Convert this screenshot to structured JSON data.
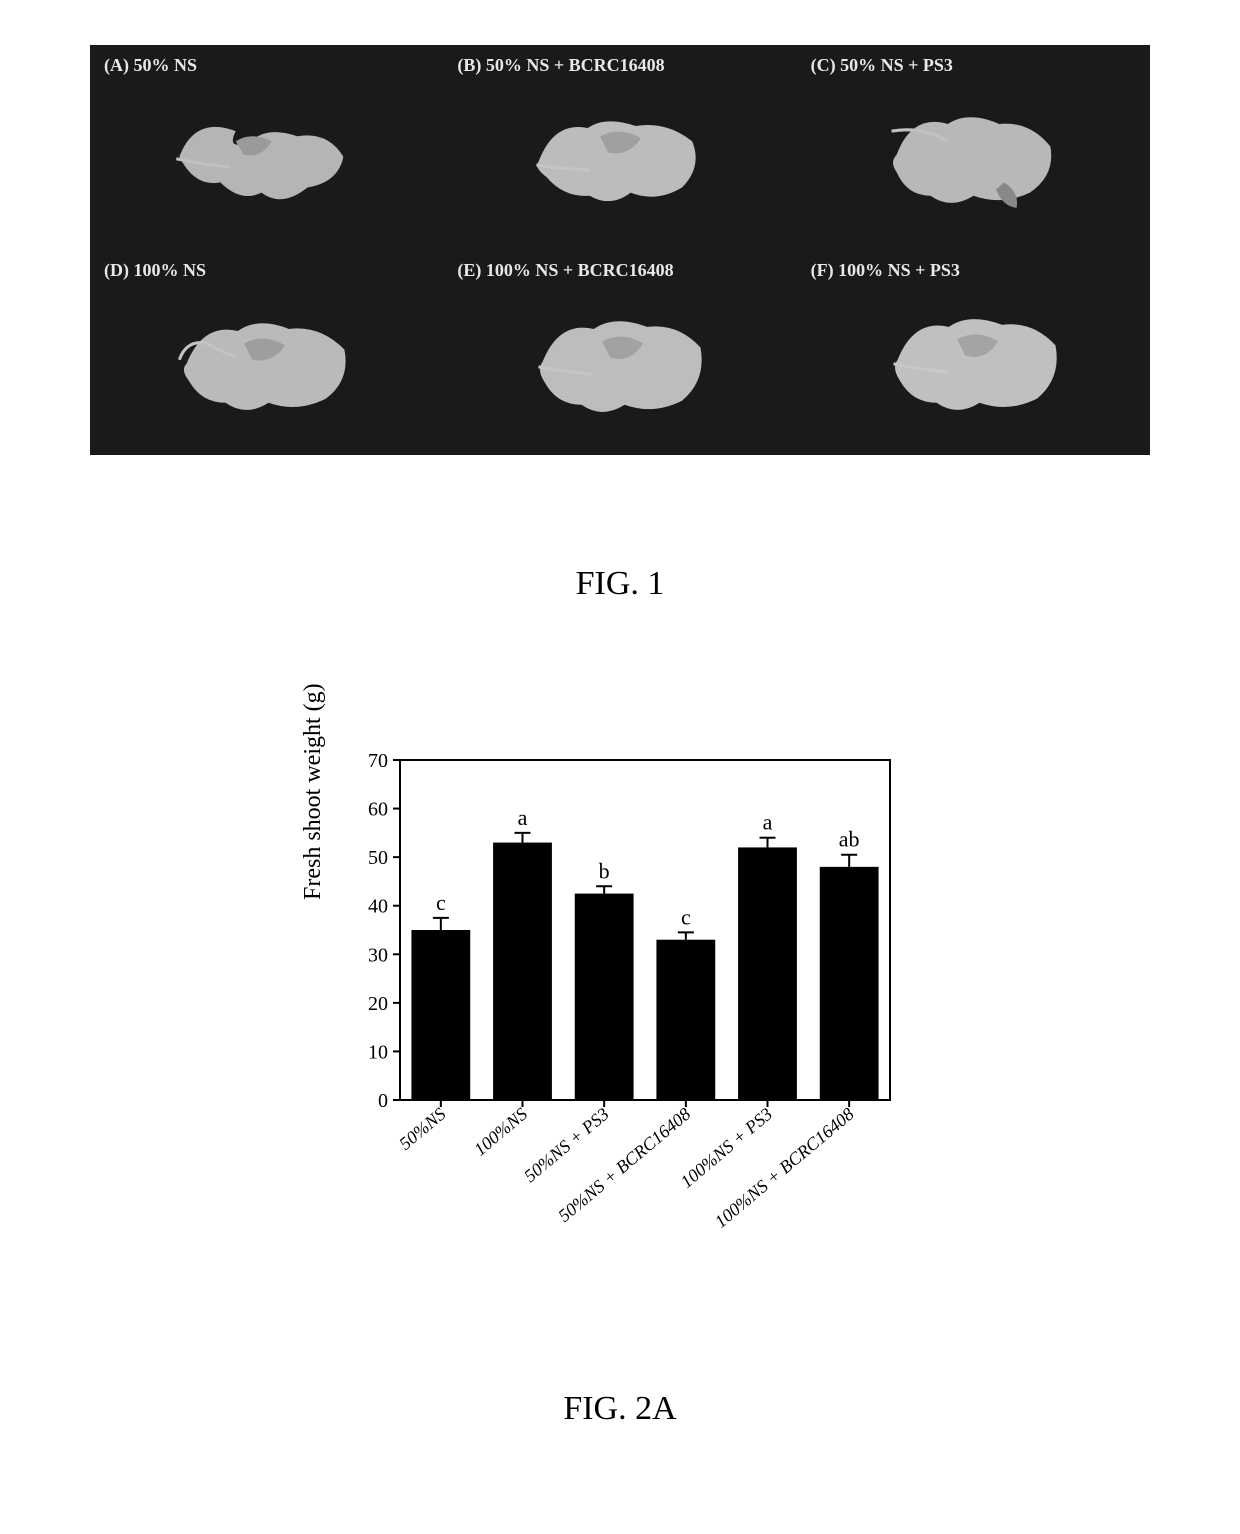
{
  "figure1": {
    "caption": "FIG. 1",
    "panels": [
      {
        "label": "(A) 50% NS"
      },
      {
        "label": "(B) 50% NS + BCRC16408"
      },
      {
        "label": "(C) 50% NS + PS3"
      },
      {
        "label": "(D) 100% NS"
      },
      {
        "label": "(E) 100% NS + BCRC16408"
      },
      {
        "label": "(F) 100% NS + PS3"
      }
    ],
    "panel_background": "#1a1a1a",
    "label_color": "#e8e8e8",
    "label_fontsize": 18
  },
  "figure2a": {
    "caption": "FIG. 2A",
    "chart": {
      "type": "bar",
      "ylabel": "Fresh shoot weight (g)",
      "ylim": [
        0,
        70
      ],
      "ytick_step": 10,
      "yticks": [
        0,
        10,
        20,
        30,
        40,
        50,
        60,
        70
      ],
      "categories": [
        "50%NS",
        "100%NS",
        "50%NS + PS3",
        "50%NS + BCRC16408",
        "100%NS + PS3",
        "100%NS + BCRC16408"
      ],
      "values": [
        35,
        53,
        42.5,
        33,
        52,
        48
      ],
      "errors": [
        2.5,
        2,
        1.5,
        1.5,
        2,
        2.5
      ],
      "sig_letters": [
        "c",
        "a",
        "b",
        "c",
        "a",
        "ab"
      ],
      "bar_color": "#000000",
      "background_color": "#ffffff",
      "axis_color": "#000000",
      "tick_fontsize": 20,
      "label_fontsize": 24,
      "xlabel_fontsize": 18,
      "bar_width_ratio": 0.72,
      "xlabel_rotation": -40
    }
  }
}
